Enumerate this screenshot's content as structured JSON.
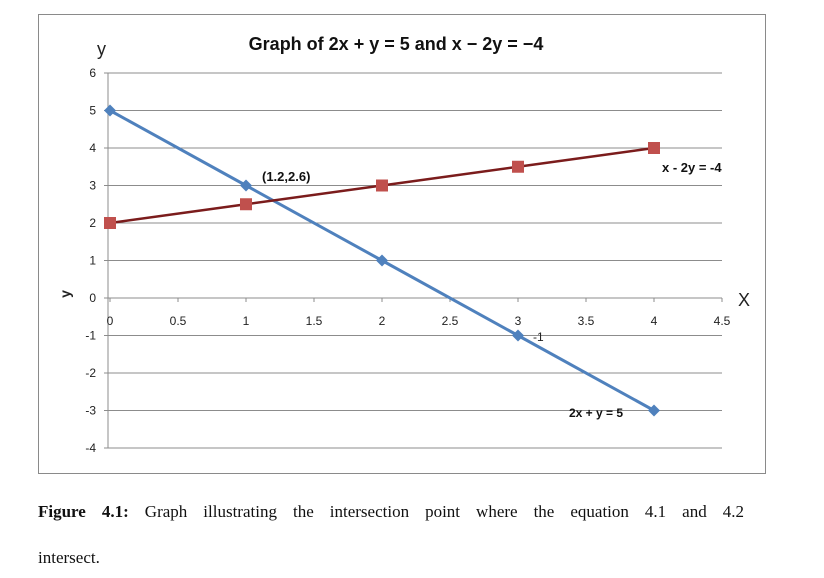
{
  "chart_data": {
    "type": "line",
    "title": "Graph of 2x + y = 5 and x − 2y = −4",
    "xlabel": "X",
    "ylabel": "y",
    "ylabel_rotated": "y",
    "xlim": [
      0,
      4.5
    ],
    "ylim": [
      -4,
      6
    ],
    "x_ticks": [
      "0",
      "0.5",
      "1",
      "1.5",
      "2",
      "2.5",
      "3",
      "3.5",
      "4",
      "4.5"
    ],
    "y_ticks": [
      "-4",
      "-3",
      "-2",
      "-1",
      "0",
      "1",
      "2",
      "3",
      "4",
      "5",
      "6"
    ],
    "grid": "horizontal",
    "series": [
      {
        "name": "2x + y = 5",
        "label": "2x  + y = 5",
        "color": "#4f81bd",
        "marker": "diamond",
        "x": [
          0,
          1,
          2,
          3,
          4
        ],
        "y": [
          5,
          3,
          1,
          -1,
          -3
        ]
      },
      {
        "name": "x - 2y = -4",
        "label": "x - 2y = -4",
        "color": "#c0504d",
        "line_color": "#7b1c1c",
        "marker": "square",
        "x": [
          0,
          1,
          2,
          3,
          4
        ],
        "y": [
          2,
          2.5,
          3,
          3.5,
          4
        ]
      }
    ],
    "annotations": [
      {
        "text": "(1.2,2.6)",
        "x": 1.2,
        "y": 2.6
      },
      {
        "text": "-1",
        "x": 3,
        "y": -1
      }
    ]
  },
  "caption": {
    "label": "Figure 4.1:",
    "text": " Graph illustrating the intersection point where the equation 4.1 and 4.2",
    "text_line2": "intersect."
  }
}
